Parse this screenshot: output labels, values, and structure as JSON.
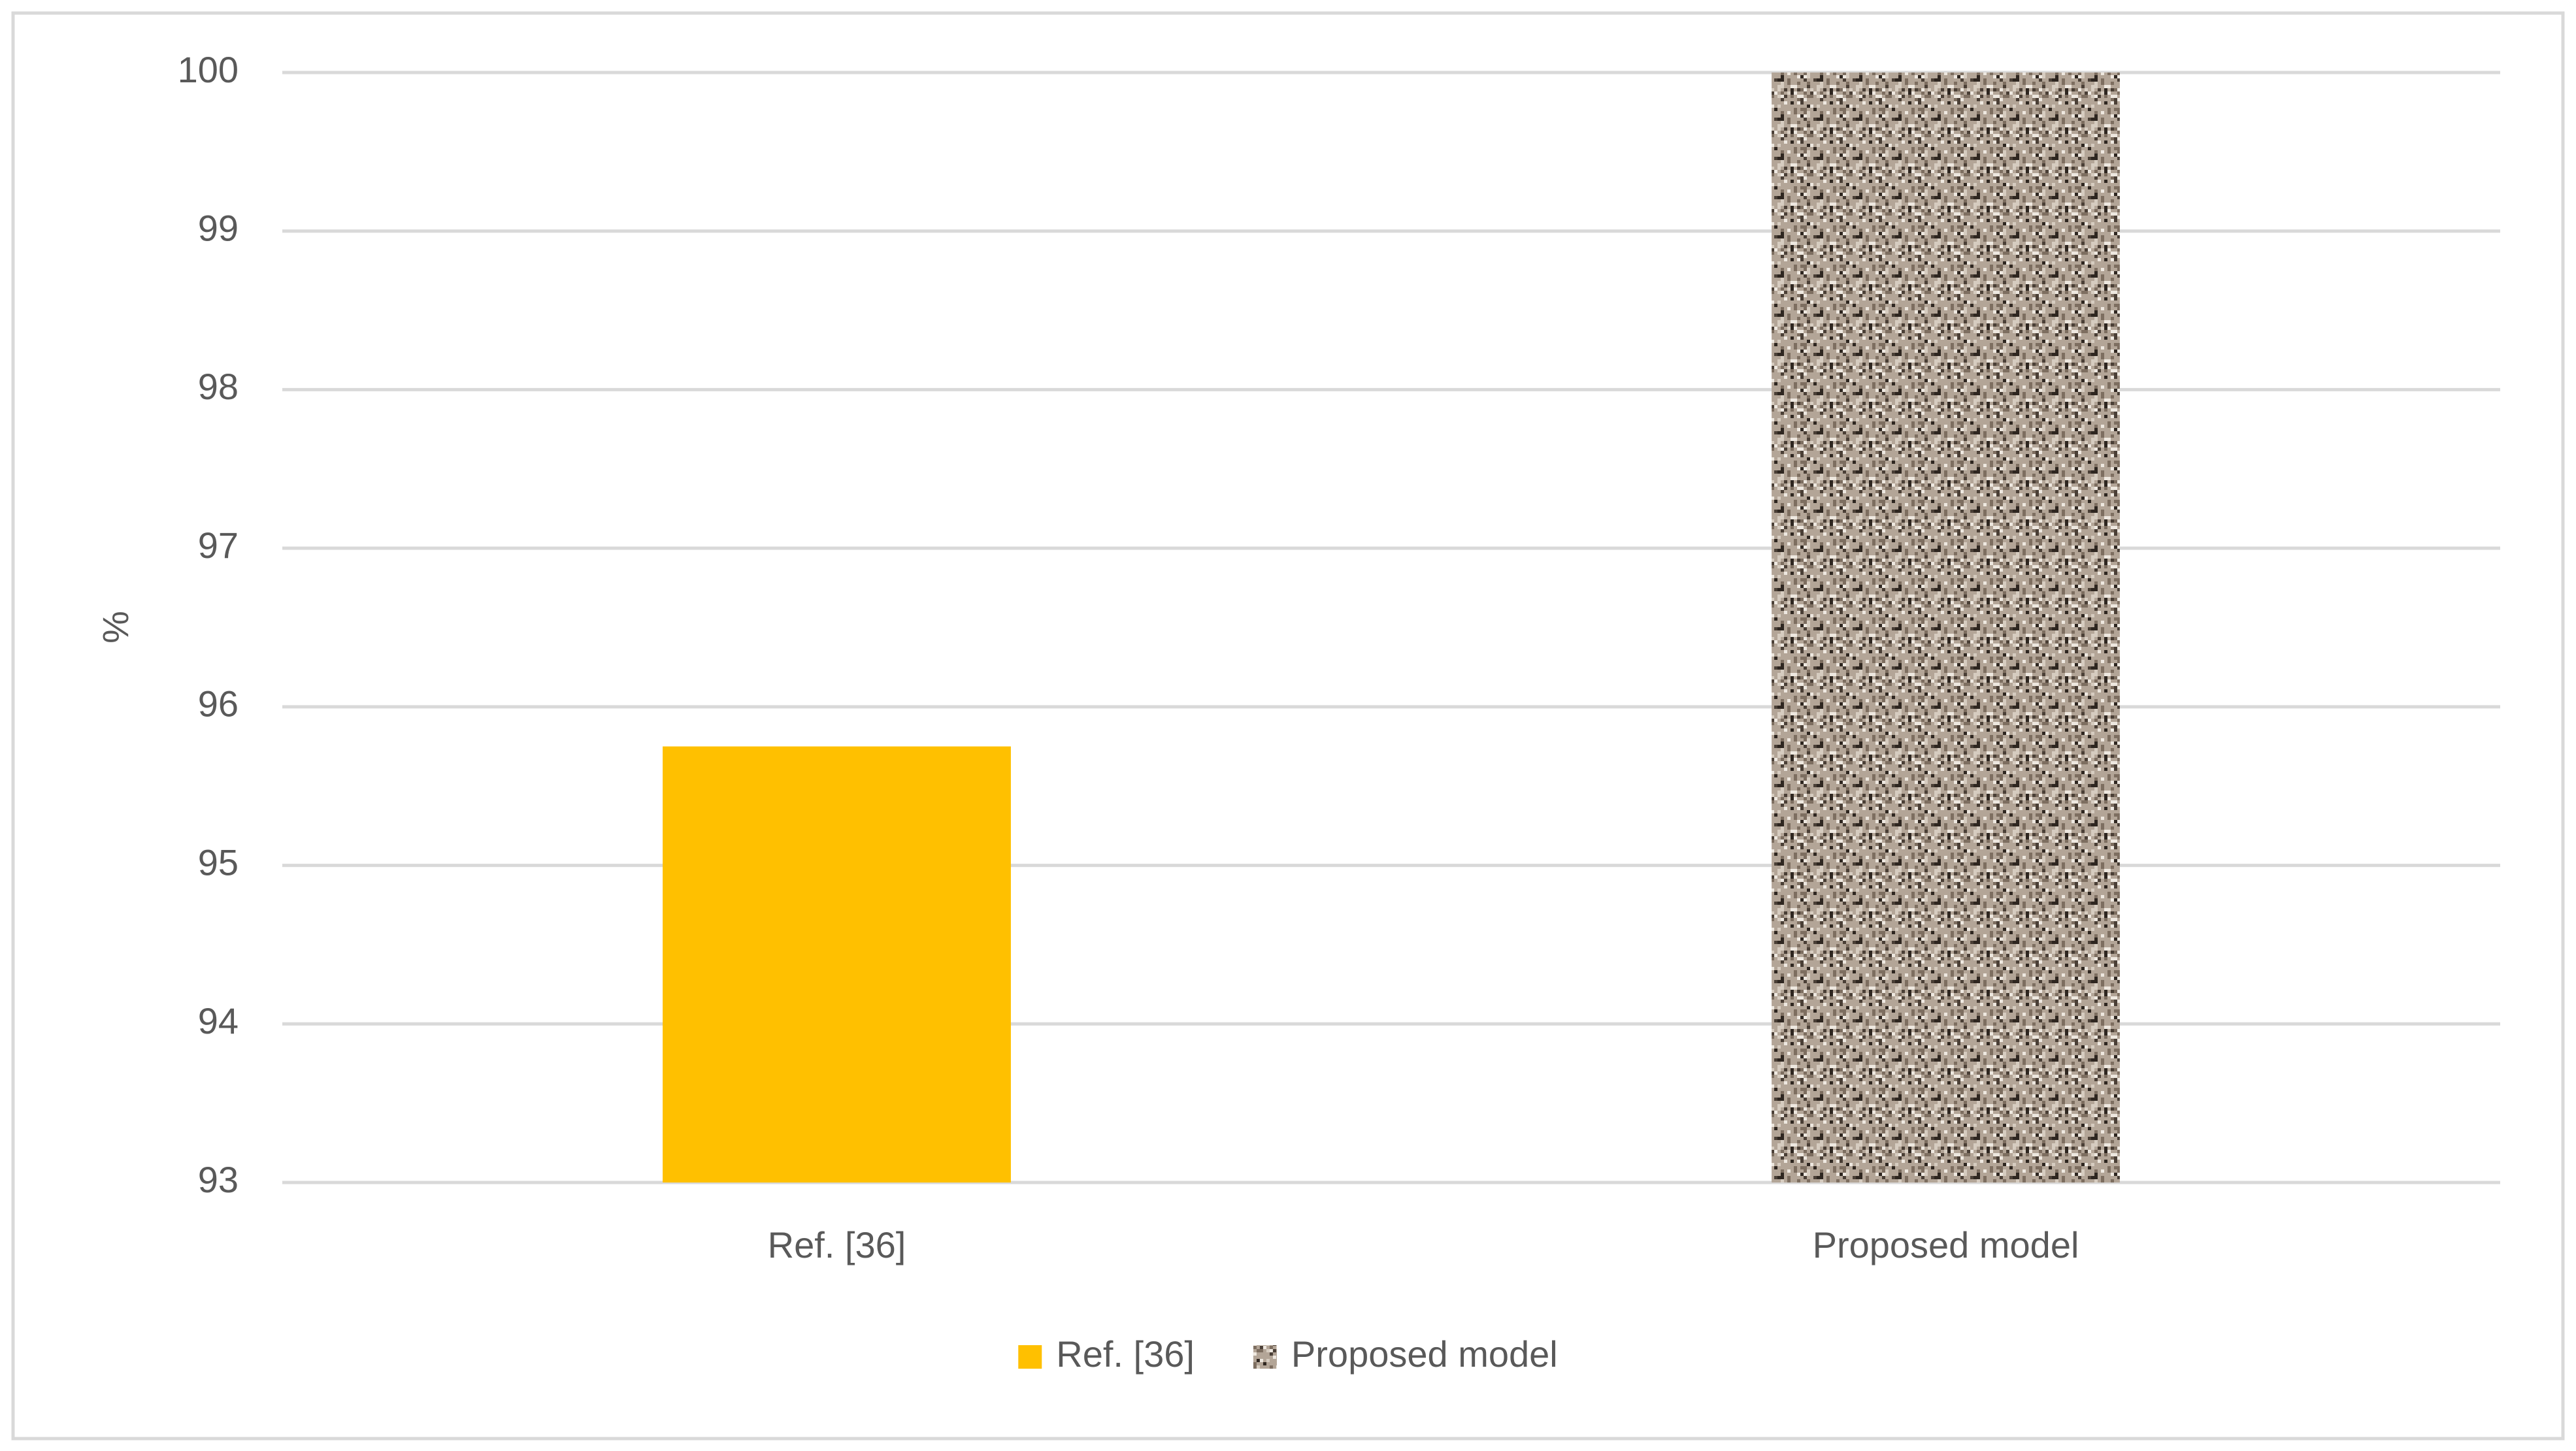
{
  "chart_data": {
    "type": "bar",
    "y_label": "%",
    "categories": [
      "Ref. [36]",
      "Proposed model"
    ],
    "values": [
      95.75,
      100
    ],
    "colors": [
      "#ffc000",
      "#b3a597"
    ],
    "fill_patterns": [
      "solid",
      "speckled"
    ],
    "ylim": [
      93,
      100
    ],
    "yticks": [
      93,
      94,
      95,
      96,
      97,
      98,
      99,
      100
    ],
    "grid": true,
    "legend": "bottom"
  }
}
